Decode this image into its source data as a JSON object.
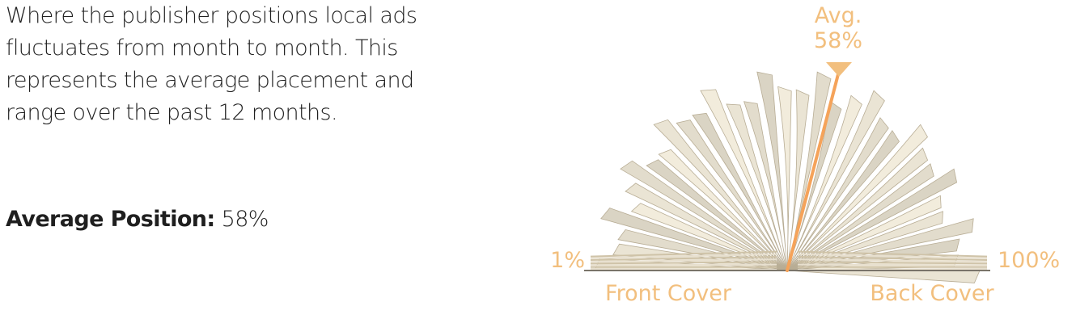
{
  "description": "Where the publisher positions local ads fluctuates from month to month. This represents the average placement and range over the past 12 months.",
  "average_position": {
    "label": "Average Position:",
    "value": "58%"
  },
  "indicator": {
    "label_line1": "Avg.",
    "label_line2": "58%",
    "position_fraction": 0.58
  },
  "scale": {
    "min_label": "1%",
    "max_label": "100%",
    "front_label": "Front Cover",
    "back_label": "Back Cover"
  },
  "colors": {
    "accent": "#f2bf7e",
    "indicator_line": "#f5a35a",
    "text": "#1f1f1f"
  }
}
